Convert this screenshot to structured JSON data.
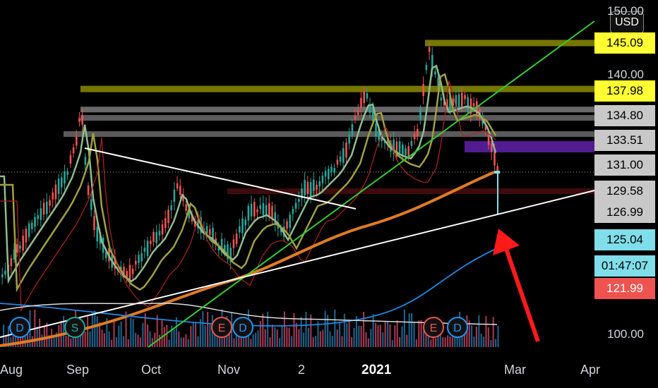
{
  "chart_data": {
    "type": "candlestick",
    "currency": "USD",
    "y_axis_ticks": [
      "150.00",
      "140.00",
      "100.00"
    ],
    "x_axis_ticks": [
      "Aug",
      "Sep",
      "Oct",
      "Nov",
      "2",
      "2021",
      "Mar",
      "Apr"
    ],
    "price_tags": [
      {
        "value": "145.09",
        "color": "#ffff33"
      },
      {
        "value": "137.98",
        "color": "#ffff33"
      },
      {
        "value": "134.80",
        "color": "#c8c8c8"
      },
      {
        "value": "133.51",
        "color": "#c8c8c8"
      },
      {
        "value": "131.00",
        "color": "#c8c8c8"
      },
      {
        "value": "129.58",
        "color": "#c8c8c8"
      },
      {
        "value": "126.99",
        "color": "#c8c8c8"
      },
      {
        "value": "125.04",
        "color": "#80deea"
      },
      {
        "value": "01:47:07",
        "color": "#80deea"
      },
      {
        "value": "121.99",
        "color": "#ef5350"
      }
    ],
    "event_markers": [
      {
        "letter": "D",
        "color": "#2196f3"
      },
      {
        "letter": "S",
        "color": "#26a69a"
      },
      {
        "letter": "E",
        "color": "#ef5350"
      },
      {
        "letter": "D",
        "color": "#2196f3"
      },
      {
        "letter": "E",
        "color": "#ef5350"
      },
      {
        "letter": "D",
        "color": "#2196f3"
      }
    ],
    "support_resistance_levels": [
      145.09,
      137.98,
      134.8,
      133.51,
      131.0,
      129.58,
      126.99
    ],
    "annotation_arrow": "red arrow pointing to the latest candle low",
    "colors": {
      "up": "#26a69a",
      "down": "#ef5350",
      "ema200": "#e07b24",
      "sma": "#1e88e5",
      "trend_green": "#32cd32",
      "trend_white": "#ffffff"
    }
  }
}
